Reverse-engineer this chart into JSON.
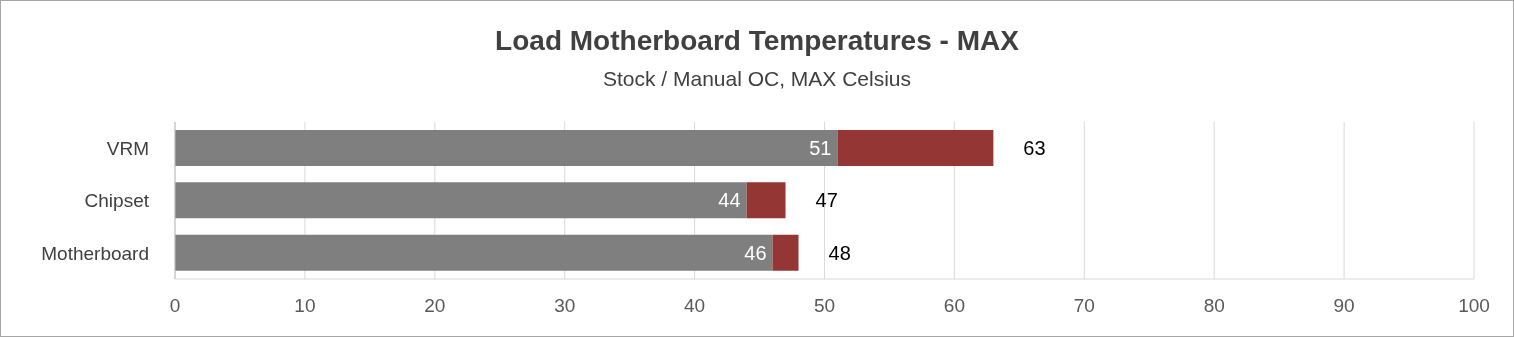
{
  "chart_data": {
    "type": "bar",
    "orientation": "horizontal",
    "stacked": true,
    "title": "Load Motherboard Temperatures - MAX",
    "subtitle": "Stock / Manual OC, MAX Celsius",
    "categories": [
      "VRM",
      "Chipset",
      "Motherboard"
    ],
    "series": [
      {
        "color": "#7f7f7f",
        "values": [
          51,
          44,
          46
        ],
        "value_labels": [
          "51",
          "44",
          "46"
        ]
      },
      {
        "color": "#943634",
        "values": [
          12,
          3,
          2
        ]
      }
    ],
    "totals": [
      "63",
      "47",
      "48"
    ],
    "xlim": [
      0,
      100
    ],
    "xticks": [
      0,
      10,
      20,
      30,
      40,
      50,
      60,
      70,
      80,
      90,
      100
    ],
    "grid": "x"
  }
}
